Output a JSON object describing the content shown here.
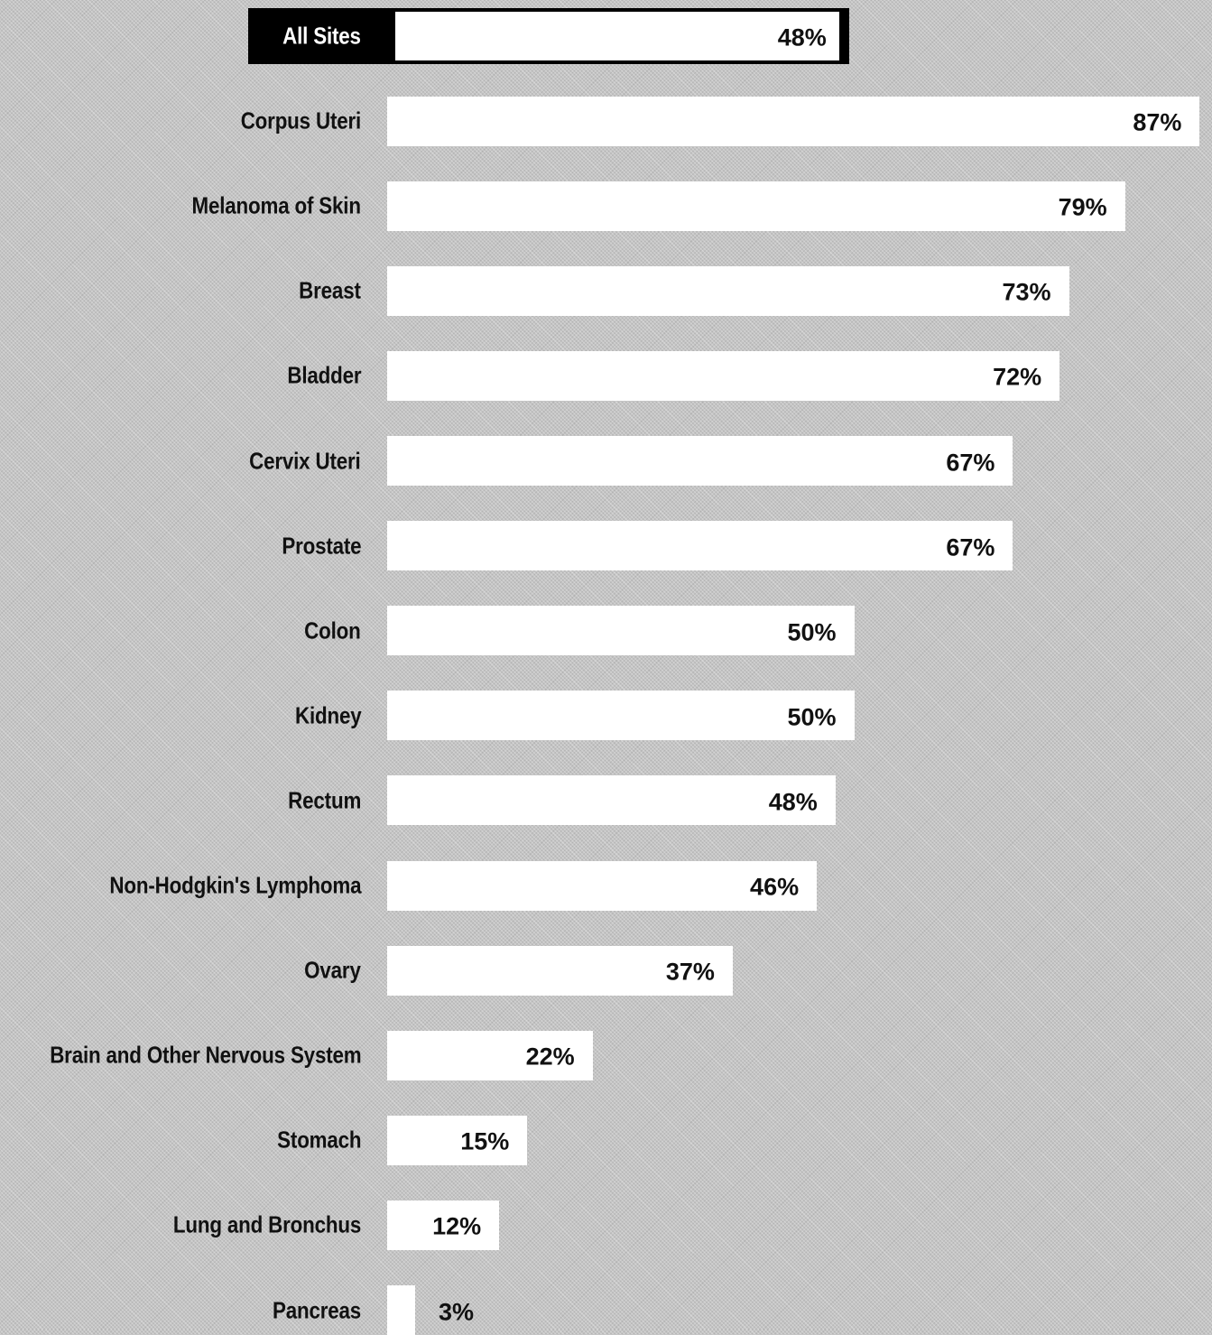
{
  "chart_data": {
    "type": "bar",
    "orientation": "horizontal",
    "title": "",
    "xlabel": "",
    "ylabel": "",
    "xlim": [
      0,
      100
    ],
    "value_suffix": "%",
    "highlighted_category": "All Sites",
    "categories": [
      "All Sites",
      "Corpus Uteri",
      "Melanoma of Skin",
      "Breast",
      "Bladder",
      "Cervix Uteri",
      "Prostate",
      "Colon",
      "Kidney",
      "Rectum",
      "Non-Hodgkin's Lymphoma",
      "Ovary",
      "Brain and Other Nervous System",
      "Stomach",
      "Lung and Bronchus",
      "Pancreas"
    ],
    "values": [
      48,
      87,
      79,
      73,
      72,
      67,
      67,
      50,
      50,
      48,
      46,
      37,
      22,
      15,
      12,
      3
    ],
    "value_labels": [
      "48%",
      "87%",
      "79%",
      "73%",
      "72%",
      "67%",
      "67%",
      "50%",
      "50%",
      "48%",
      "46%",
      "37%",
      "22%",
      "15%",
      "12%",
      "3%"
    ],
    "grid": false,
    "legend": "none",
    "colors": {
      "bar": "#ffffff",
      "background": "#c4c4c4",
      "highlight": "#000000",
      "text": "#111111",
      "highlight_text": "#ffffff"
    }
  }
}
